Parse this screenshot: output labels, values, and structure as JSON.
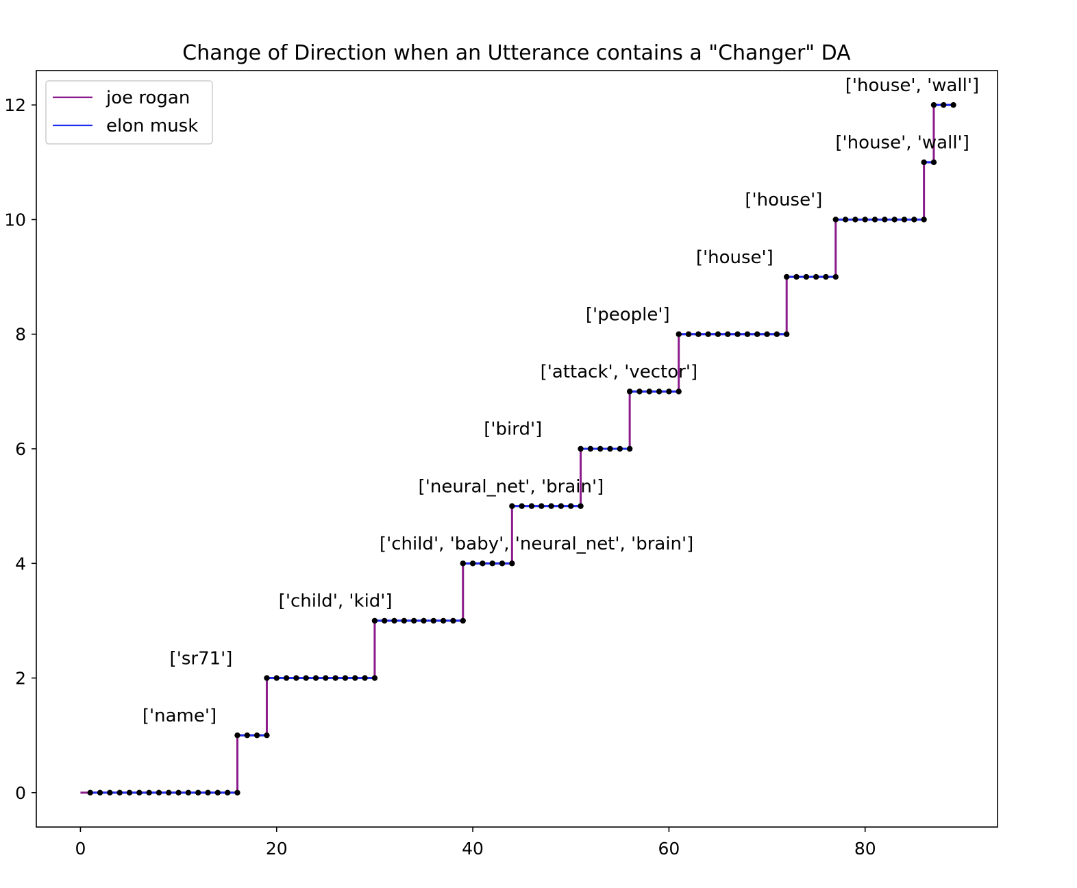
{
  "chart_data": {
    "type": "line",
    "title": "Change of Direction when an Utterance contains a \"Changer\" DA",
    "xlabel": "",
    "ylabel": "",
    "xlim": [
      -4.5,
      93.5
    ],
    "ylim": [
      -0.6,
      12.6
    ],
    "xticks": [
      0,
      20,
      40,
      60,
      80
    ],
    "yticks": [
      0,
      2,
      4,
      6,
      8,
      10,
      12
    ],
    "grid": false,
    "legend_position": "upper left",
    "series": [
      {
        "name": "joe rogan",
        "color": "#8b1a8b",
        "style": "step"
      },
      {
        "name": "elon musk",
        "color": "#1f2ff0",
        "style": "segments"
      }
    ],
    "steps": [
      {
        "level": 0,
        "x_start": 0,
        "x_end": 16
      },
      {
        "level": 1,
        "x_start": 16,
        "x_end": 19
      },
      {
        "level": 2,
        "x_start": 19,
        "x_end": 30
      },
      {
        "level": 3,
        "x_start": 30,
        "x_end": 39
      },
      {
        "level": 4,
        "x_start": 39,
        "x_end": 44
      },
      {
        "level": 5,
        "x_start": 44,
        "x_end": 51
      },
      {
        "level": 6,
        "x_start": 51,
        "x_end": 56
      },
      {
        "level": 7,
        "x_start": 56,
        "x_end": 61
      },
      {
        "level": 8,
        "x_start": 61,
        "x_end": 72
      },
      {
        "level": 9,
        "x_start": 72,
        "x_end": 77
      },
      {
        "level": 10,
        "x_start": 77,
        "x_end": 86
      },
      {
        "level": 11,
        "x_start": 86,
        "x_end": 87
      },
      {
        "level": 12,
        "x_start": 87,
        "x_end": 89
      }
    ],
    "points": [
      [
        1,
        0
      ],
      [
        2,
        0
      ],
      [
        3,
        0
      ],
      [
        4,
        0
      ],
      [
        5,
        0
      ],
      [
        6,
        0
      ],
      [
        7,
        0
      ],
      [
        8,
        0
      ],
      [
        9,
        0
      ],
      [
        10,
        0
      ],
      [
        11,
        0
      ],
      [
        12,
        0
      ],
      [
        13,
        0
      ],
      [
        14,
        0
      ],
      [
        15,
        0
      ],
      [
        16,
        0
      ],
      [
        16,
        1
      ],
      [
        17,
        1
      ],
      [
        18,
        1
      ],
      [
        19,
        1
      ],
      [
        19,
        2
      ],
      [
        20,
        2
      ],
      [
        21,
        2
      ],
      [
        22,
        2
      ],
      [
        23,
        2
      ],
      [
        24,
        2
      ],
      [
        25,
        2
      ],
      [
        26,
        2
      ],
      [
        27,
        2
      ],
      [
        28,
        2
      ],
      [
        29,
        2
      ],
      [
        30,
        2
      ],
      [
        30,
        3
      ],
      [
        31,
        3
      ],
      [
        32,
        3
      ],
      [
        33,
        3
      ],
      [
        34,
        3
      ],
      [
        35,
        3
      ],
      [
        36,
        3
      ],
      [
        37,
        3
      ],
      [
        38,
        3
      ],
      [
        39,
        3
      ],
      [
        39,
        4
      ],
      [
        40,
        4
      ],
      [
        41,
        4
      ],
      [
        42,
        4
      ],
      [
        43,
        4
      ],
      [
        44,
        4
      ],
      [
        44,
        5
      ],
      [
        45,
        5
      ],
      [
        46,
        5
      ],
      [
        47,
        5
      ],
      [
        48,
        5
      ],
      [
        49,
        5
      ],
      [
        50,
        5
      ],
      [
        51,
        5
      ],
      [
        51,
        6
      ],
      [
        52,
        6
      ],
      [
        53,
        6
      ],
      [
        54,
        6
      ],
      [
        55,
        6
      ],
      [
        56,
        6
      ],
      [
        56,
        7
      ],
      [
        57,
        7
      ],
      [
        58,
        7
      ],
      [
        59,
        7
      ],
      [
        60,
        7
      ],
      [
        61,
        7
      ],
      [
        61,
        8
      ],
      [
        62,
        8
      ],
      [
        63,
        8
      ],
      [
        64,
        8
      ],
      [
        65,
        8
      ],
      [
        66,
        8
      ],
      [
        67,
        8
      ],
      [
        68,
        8
      ],
      [
        69,
        8
      ],
      [
        70,
        8
      ],
      [
        71,
        8
      ],
      [
        72,
        8
      ],
      [
        72,
        9
      ],
      [
        73,
        9
      ],
      [
        74,
        9
      ],
      [
        75,
        9
      ],
      [
        76,
        9
      ],
      [
        77,
        9
      ],
      [
        77,
        10
      ],
      [
        78,
        10
      ],
      [
        79,
        10
      ],
      [
        80,
        10
      ],
      [
        81,
        10
      ],
      [
        82,
        10
      ],
      [
        83,
        10
      ],
      [
        84,
        10
      ],
      [
        85,
        10
      ],
      [
        86,
        10
      ],
      [
        86,
        11
      ],
      [
        87,
        11
      ],
      [
        87,
        12
      ],
      [
        88,
        12
      ],
      [
        89,
        12
      ]
    ],
    "annotations": [
      {
        "text": "['name']",
        "x": 10.1,
        "y": 1.35
      },
      {
        "text": "['sr71']",
        "x": 12.3,
        "y": 2.35
      },
      {
        "text": "['child', 'kid']",
        "x": 26.0,
        "y": 3.35
      },
      {
        "text": "['child', 'baby', 'neural_net', 'brain']",
        "x": 46.5,
        "y": 4.35
      },
      {
        "text": "['neural_net', 'brain']",
        "x": 43.9,
        "y": 5.35
      },
      {
        "text": "['bird']",
        "x": 44.1,
        "y": 6.35
      },
      {
        "text": "['attack', 'vector']",
        "x": 54.9,
        "y": 7.35
      },
      {
        "text": "['people']",
        "x": 55.8,
        "y": 8.35
      },
      {
        "text": "['house']",
        "x": 66.7,
        "y": 9.35
      },
      {
        "text": "['house']",
        "x": 71.7,
        "y": 10.35
      },
      {
        "text": "['house', 'wall']",
        "x": 83.8,
        "y": 11.35
      },
      {
        "text": "['house', 'wall']",
        "x": 84.8,
        "y": 12.35
      }
    ]
  }
}
